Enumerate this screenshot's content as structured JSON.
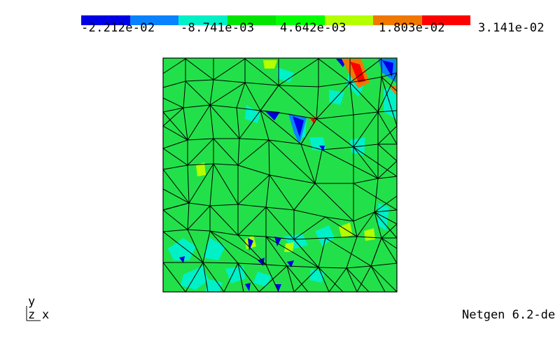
{
  "app": {
    "version_text": "Netgen 6.2-de"
  },
  "colorbar": {
    "tick_labels": [
      "-2.212e-02",
      "-8.741e-03",
      "4.642e-03",
      "1.803e-02",
      "3.141e-02"
    ],
    "colors": [
      "#0000e6",
      "#0a82ff",
      "#00f0c8",
      "#00e600",
      "#00ff00",
      "#b4ff00",
      "#f07800",
      "#ff0000"
    ]
  },
  "field": {
    "base_color": "#22e04a",
    "mesh_color": "#000000"
  },
  "axes": {
    "y_label": "y",
    "z_label": "z",
    "x_label": "x"
  }
}
